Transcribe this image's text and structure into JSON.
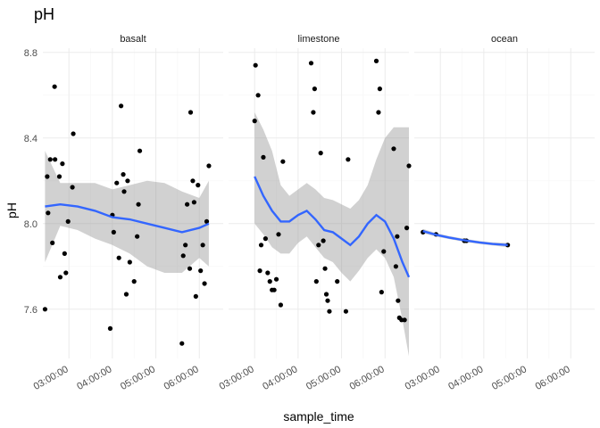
{
  "chart_data": {
    "type": "scatter",
    "title": "pH",
    "xlabel": "sample_time",
    "ylabel": "pH",
    "ylim": [
      7.37,
      8.82
    ],
    "xlim_hours": [
      2.4,
      6.55
    ],
    "y_ticks": [
      7.6,
      8.0,
      8.4,
      8.8
    ],
    "y_tick_labels": [
      "7.6",
      "8.0",
      "8.4",
      "8.8"
    ],
    "x_ticks_hours": [
      3,
      4,
      5,
      6
    ],
    "x_tick_labels": [
      "03:00:00",
      "04:00:00",
      "05:00:00",
      "06:00:00"
    ],
    "grid": true,
    "smoother_color": "#3366ff",
    "point_color": "#000000",
    "ribbon_color": "#999999",
    "panels": [
      {
        "name": "basalt",
        "points": [
          [
            2.45,
            7.6
          ],
          [
            2.5,
            8.22
          ],
          [
            2.52,
            8.05
          ],
          [
            2.57,
            8.3
          ],
          [
            2.62,
            7.91
          ],
          [
            2.67,
            8.64
          ],
          [
            2.68,
            8.3
          ],
          [
            2.78,
            8.22
          ],
          [
            2.8,
            7.75
          ],
          [
            2.85,
            8.28
          ],
          [
            2.9,
            7.86
          ],
          [
            2.93,
            7.77
          ],
          [
            2.98,
            8.01
          ],
          [
            3.08,
            8.17
          ],
          [
            3.1,
            8.42
          ],
          [
            3.95,
            7.51
          ],
          [
            4.0,
            8.04
          ],
          [
            4.03,
            7.96
          ],
          [
            4.1,
            8.19
          ],
          [
            4.15,
            7.84
          ],
          [
            4.2,
            8.55
          ],
          [
            4.25,
            8.23
          ],
          [
            4.27,
            8.15
          ],
          [
            4.32,
            7.67
          ],
          [
            4.35,
            8.2
          ],
          [
            4.4,
            7.82
          ],
          [
            4.5,
            7.73
          ],
          [
            4.57,
            7.94
          ],
          [
            4.6,
            8.09
          ],
          [
            4.63,
            8.34
          ],
          [
            5.6,
            7.44
          ],
          [
            5.63,
            7.85
          ],
          [
            5.68,
            7.9
          ],
          [
            5.72,
            8.09
          ],
          [
            5.78,
            7.79
          ],
          [
            5.8,
            8.52
          ],
          [
            5.85,
            8.2
          ],
          [
            5.88,
            8.1
          ],
          [
            5.92,
            7.66
          ],
          [
            5.97,
            8.18
          ],
          [
            6.03,
            7.78
          ],
          [
            6.08,
            7.9
          ],
          [
            6.12,
            7.72
          ],
          [
            6.17,
            8.01
          ],
          [
            6.22,
            8.27
          ]
        ],
        "smooth_x": [
          2.45,
          2.8,
          3.2,
          3.6,
          4.0,
          4.4,
          4.8,
          5.2,
          5.6,
          6.0,
          6.22
        ],
        "smooth_y": [
          8.08,
          8.09,
          8.08,
          8.06,
          8.03,
          8.02,
          8.0,
          7.98,
          7.96,
          7.98,
          8.0
        ],
        "lower": [
          7.82,
          7.99,
          7.97,
          7.93,
          7.9,
          7.86,
          7.8,
          7.77,
          7.77,
          7.84,
          7.8
        ],
        "upper": [
          8.34,
          8.19,
          8.19,
          8.19,
          8.16,
          8.18,
          8.2,
          8.19,
          8.15,
          8.12,
          8.2
        ]
      },
      {
        "name": "limestone",
        "points": [
          [
            3.0,
            8.48
          ],
          [
            3.02,
            8.74
          ],
          [
            3.08,
            8.6
          ],
          [
            3.12,
            7.78
          ],
          [
            3.15,
            7.9
          ],
          [
            3.2,
            8.31
          ],
          [
            3.25,
            7.93
          ],
          [
            3.3,
            7.77
          ],
          [
            3.35,
            7.73
          ],
          [
            3.4,
            7.69
          ],
          [
            3.45,
            7.69
          ],
          [
            3.5,
            7.74
          ],
          [
            3.55,
            7.95
          ],
          [
            3.6,
            7.62
          ],
          [
            3.65,
            8.29
          ],
          [
            4.3,
            8.75
          ],
          [
            4.35,
            8.52
          ],
          [
            4.38,
            8.63
          ],
          [
            4.42,
            7.73
          ],
          [
            4.47,
            7.9
          ],
          [
            4.52,
            8.33
          ],
          [
            4.58,
            7.92
          ],
          [
            4.62,
            7.79
          ],
          [
            4.65,
            7.67
          ],
          [
            4.68,
            7.64
          ],
          [
            4.72,
            7.59
          ],
          [
            4.9,
            7.73
          ],
          [
            5.1,
            7.59
          ],
          [
            5.15,
            8.3
          ],
          [
            5.8,
            8.76
          ],
          [
            5.85,
            8.52
          ],
          [
            5.88,
            8.63
          ],
          [
            5.92,
            7.68
          ],
          [
            5.97,
            7.87
          ],
          [
            6.2,
            8.35
          ],
          [
            6.25,
            7.8
          ],
          [
            6.28,
            7.94
          ],
          [
            6.3,
            7.64
          ],
          [
            6.33,
            7.56
          ],
          [
            6.38,
            7.55
          ],
          [
            6.45,
            7.55
          ],
          [
            6.5,
            7.98
          ],
          [
            6.55,
            8.27
          ]
        ],
        "smooth_x": [
          3.0,
          3.2,
          3.4,
          3.6,
          3.8,
          4.0,
          4.2,
          4.4,
          4.6,
          4.8,
          5.0,
          5.2,
          5.4,
          5.6,
          5.8,
          6.0,
          6.2,
          6.4,
          6.55
        ],
        "smooth_y": [
          8.22,
          8.13,
          8.06,
          8.01,
          8.01,
          8.04,
          8.06,
          8.02,
          7.97,
          7.96,
          7.93,
          7.9,
          7.94,
          8.0,
          8.04,
          8.01,
          7.93,
          7.82,
          7.75
        ],
        "lower": [
          8.0,
          7.95,
          7.89,
          7.86,
          7.86,
          7.91,
          7.94,
          7.89,
          7.84,
          7.82,
          7.77,
          7.73,
          7.78,
          7.84,
          7.88,
          7.84,
          7.75,
          7.55,
          7.38
        ],
        "upper": [
          8.52,
          8.44,
          8.34,
          8.18,
          8.13,
          8.16,
          8.19,
          8.16,
          8.12,
          8.11,
          8.09,
          8.07,
          8.11,
          8.18,
          8.3,
          8.4,
          8.45,
          8.45,
          8.45
        ]
      },
      {
        "name": "ocean",
        "points": [
          [
            2.6,
            7.96
          ],
          [
            2.9,
            7.95
          ],
          [
            3.55,
            7.92
          ],
          [
            3.6,
            7.92
          ],
          [
            4.55,
            7.9
          ]
        ],
        "smooth_x": [
          2.6,
          2.9,
          3.2,
          3.55,
          3.9,
          4.2,
          4.55
        ],
        "smooth_y": [
          7.965,
          7.948,
          7.935,
          7.922,
          7.912,
          7.905,
          7.9
        ],
        "lower": [
          7.955,
          7.94,
          7.928,
          7.915,
          7.905,
          7.898,
          7.89
        ],
        "upper": [
          7.975,
          7.956,
          7.942,
          7.929,
          7.919,
          7.912,
          7.91
        ]
      }
    ]
  }
}
